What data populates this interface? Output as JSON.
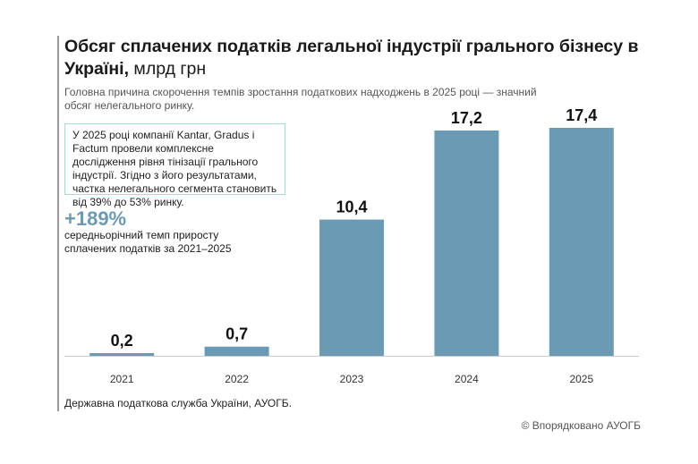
{
  "title": {
    "bold": "Обсяг сплачених податків легальної індустрії грального бізнесу в Україні,",
    "unit": " млрд грн"
  },
  "subtitle": "Головна причина скорочення темпів зростання податкових надходжень в 2025 році — значний обсяг нелегального ринку.",
  "note": "У 2025 році компанії Kantar, Gradus і Factum провели комплексне дослідження рівня тінізації грального індустрії. Згідно з його результатами, частка нелегального сегмента становить від 39% до 53% ринку.",
  "highlight": {
    "value": "+189%",
    "description": "середньорічний темп приросту сплачених податків за 2021–2025"
  },
  "source": "Державна податкова служба України, АУОГБ.",
  "copyright": "© Впорядковано АУОГБ",
  "colors": {
    "bar": "#6b9bb4",
    "note_border": "#a8dcc4"
  },
  "chart_data": {
    "type": "bar",
    "categories": [
      "2021",
      "2022",
      "2023",
      "2024",
      "2025"
    ],
    "values": [
      0.2,
      0.7,
      10.4,
      17.2,
      17.4
    ],
    "labels": [
      "0,2",
      "0,7",
      "10,4",
      "17,2",
      "17,4"
    ],
    "ylim": [
      0,
      17.4
    ],
    "grid": false
  }
}
